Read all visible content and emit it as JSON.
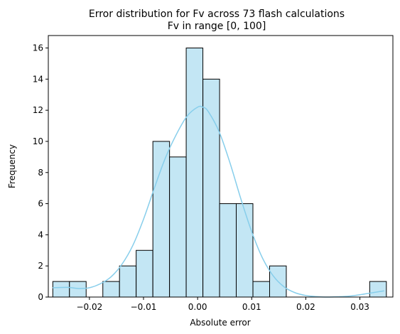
{
  "chart_data": {
    "type": "bar",
    "title": "Error distribution for Fv  across 73 flash calculations",
    "subtitle": "Fv in range [0, 100]",
    "xlabel": "Absolute error",
    "ylabel": "Frequency",
    "xlim": [
      -0.0276,
      0.0361
    ],
    "ylim": [
      0,
      16.8
    ],
    "grid": false,
    "legend": "none",
    "bin_width": 0.003083,
    "bins": [
      {
        "left": -0.02677,
        "count": 1
      },
      {
        "left": -0.02369,
        "count": 1
      },
      {
        "left": -0.02061,
        "count": 0
      },
      {
        "left": -0.01752,
        "count": 1
      },
      {
        "left": -0.01444,
        "count": 2
      },
      {
        "left": -0.01136,
        "count": 3
      },
      {
        "left": -0.00827,
        "count": 10
      },
      {
        "left": -0.00519,
        "count": 9
      },
      {
        "left": -0.00211,
        "count": 16
      },
      {
        "left": 0.00098,
        "count": 14
      },
      {
        "left": 0.00406,
        "count": 6
      },
      {
        "left": 0.00714,
        "count": 6
      },
      {
        "left": 0.01023,
        "count": 1
      },
      {
        "left": 0.01331,
        "count": 2
      },
      {
        "left": 0.01639,
        "count": 0
      },
      {
        "left": 0.01948,
        "count": 0
      },
      {
        "left": 0.02256,
        "count": 0
      },
      {
        "left": 0.02564,
        "count": 0
      },
      {
        "left": 0.02873,
        "count": 0
      },
      {
        "left": 0.03181,
        "count": 1
      }
    ],
    "kde": [
      [
        -0.0268,
        0.6
      ],
      [
        -0.024,
        0.62
      ],
      [
        -0.022,
        0.55
      ],
      [
        -0.02,
        0.6
      ],
      [
        -0.018,
        0.85
      ],
      [
        -0.016,
        1.3
      ],
      [
        -0.014,
        2.1
      ],
      [
        -0.012,
        3.3
      ],
      [
        -0.01,
        5.0
      ],
      [
        -0.008,
        7.0
      ],
      [
        -0.006,
        8.9
      ],
      [
        -0.004,
        10.4
      ],
      [
        -0.002,
        11.6
      ],
      [
        0.0,
        12.2
      ],
      [
        0.001,
        12.2
      ],
      [
        0.002,
        11.9
      ],
      [
        0.004,
        10.6
      ],
      [
        0.006,
        8.6
      ],
      [
        0.008,
        6.3
      ],
      [
        0.01,
        4.2
      ],
      [
        0.012,
        2.5
      ],
      [
        0.014,
        1.35
      ],
      [
        0.016,
        0.65
      ],
      [
        0.018,
        0.28
      ],
      [
        0.02,
        0.1
      ],
      [
        0.022,
        0.03
      ],
      [
        0.024,
        0.0
      ],
      [
        0.026,
        0.02
      ],
      [
        0.028,
        0.06
      ],
      [
        0.03,
        0.15
      ],
      [
        0.032,
        0.26
      ],
      [
        0.0345,
        0.4
      ]
    ],
    "x_ticks": [
      {
        "value": -0.02,
        "label": "−0.02"
      },
      {
        "value": -0.01,
        "label": "−0.01"
      },
      {
        "value": 0.0,
        "label": "0.00"
      },
      {
        "value": 0.01,
        "label": "0.01"
      },
      {
        "value": 0.02,
        "label": "0.02"
      },
      {
        "value": 0.03,
        "label": "0.03"
      }
    ],
    "y_ticks": [
      {
        "value": 0,
        "label": "0"
      },
      {
        "value": 2,
        "label": "2"
      },
      {
        "value": 4,
        "label": "4"
      },
      {
        "value": 6,
        "label": "6"
      },
      {
        "value": 8,
        "label": "8"
      },
      {
        "value": 10,
        "label": "10"
      },
      {
        "value": 12,
        "label": "12"
      },
      {
        "value": 14,
        "label": "14"
      },
      {
        "value": 16,
        "label": "16"
      }
    ],
    "colors": {
      "bar_fill": "#c3e6f4",
      "bar_edge": "#000000",
      "kde_line": "#87ceeb"
    }
  }
}
